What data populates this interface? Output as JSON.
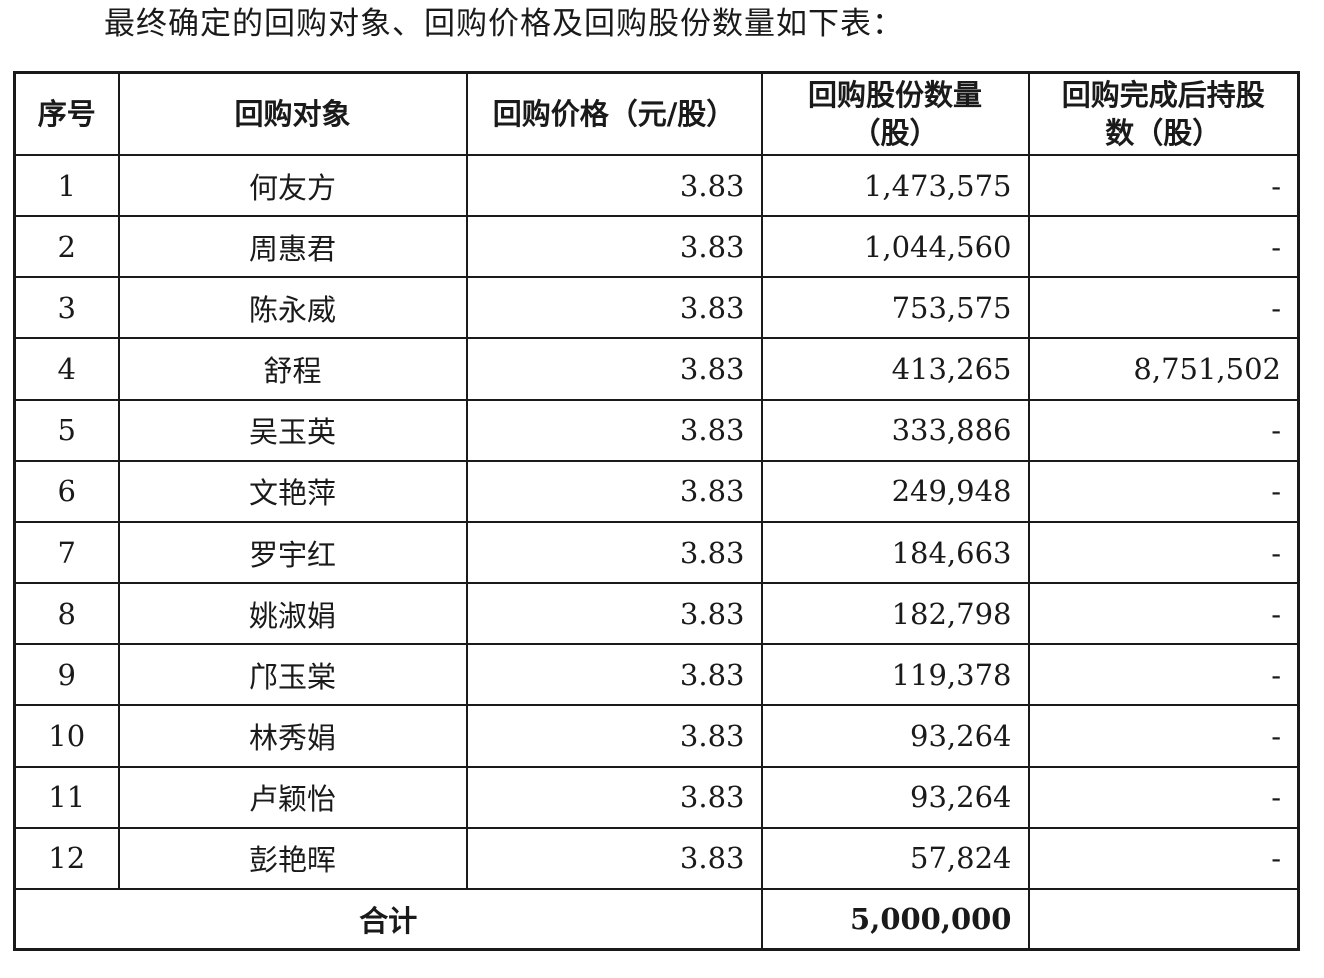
{
  "intro_text": "最终确定的回购对象、回购价格及回购股份数量如下表：",
  "table": {
    "headers": {
      "seq": "序号",
      "target": "回购对象",
      "price": "回购价格（元/股）",
      "quantity_line1": "回购股份数量",
      "quantity_line2": "（股）",
      "holding_line1": "回购完成后持股",
      "holding_line2": "数（股）"
    },
    "rows": [
      {
        "seq": "1",
        "name": "何友方",
        "price": "3.83",
        "quantity": "1,473,575",
        "holding": "-"
      },
      {
        "seq": "2",
        "name": "周惠君",
        "price": "3.83",
        "quantity": "1,044,560",
        "holding": "-"
      },
      {
        "seq": "3",
        "name": "陈永威",
        "price": "3.83",
        "quantity": "753,575",
        "holding": "-"
      },
      {
        "seq": "4",
        "name": "舒程",
        "price": "3.83",
        "quantity": "413,265",
        "holding": "8,751,502"
      },
      {
        "seq": "5",
        "name": "吴玉英",
        "price": "3.83",
        "quantity": "333,886",
        "holding": "-"
      },
      {
        "seq": "6",
        "name": "文艳萍",
        "price": "3.83",
        "quantity": "249,948",
        "holding": "-"
      },
      {
        "seq": "7",
        "name": "罗宇红",
        "price": "3.83",
        "quantity": "184,663",
        "holding": "-"
      },
      {
        "seq": "8",
        "name": "姚淑娟",
        "price": "3.83",
        "quantity": "182,798",
        "holding": "-"
      },
      {
        "seq": "9",
        "name": "邝玉棠",
        "price": "3.83",
        "quantity": "119,378",
        "holding": "-"
      },
      {
        "seq": "10",
        "name": "林秀娟",
        "price": "3.83",
        "quantity": "93,264",
        "holding": "-"
      },
      {
        "seq": "11",
        "name": "卢颖怡",
        "price": "3.83",
        "quantity": "93,264",
        "holding": "-"
      },
      {
        "seq": "12",
        "name": "彭艳晖",
        "price": "3.83",
        "quantity": "57,824",
        "holding": "-"
      }
    ],
    "total": {
      "label": "合计",
      "quantity": "5,000,000",
      "holding": ""
    }
  }
}
